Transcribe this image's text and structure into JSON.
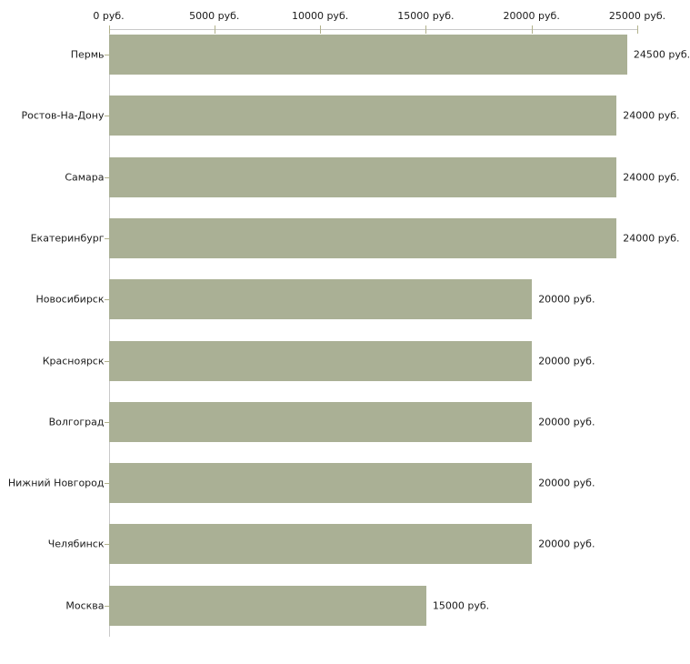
{
  "chart_data": {
    "type": "bar",
    "orientation": "horizontal",
    "title": "",
    "unit": "руб.",
    "categories": [
      "Пермь",
      "Ростов-На-Дону",
      "Самара",
      "Екатеринбург",
      "Новосибирск",
      "Красноярск",
      "Волгоград",
      "Нижний Новгород",
      "Челябинск",
      "Москва"
    ],
    "values": [
      24500,
      24000,
      24000,
      24000,
      20000,
      20000,
      20000,
      20000,
      20000,
      15000
    ],
    "value_labels": [
      "24500 руб.",
      "24000 руб.",
      "24000 руб.",
      "24000 руб.",
      "20000 руб.",
      "20000 руб.",
      "20000 руб.",
      "20000 руб.",
      "20000 руб.",
      "15000 руб."
    ],
    "x_axis": {
      "position": "top",
      "min": 0,
      "max": 25000,
      "ticks": [
        0,
        5000,
        10000,
        15000,
        20000,
        25000
      ],
      "tick_labels": [
        "0 руб.",
        "5000 руб.",
        "10000 руб.",
        "15000 руб.",
        "20000 руб.",
        "25000 руб."
      ]
    },
    "grid": false,
    "legend": null,
    "colors": {
      "bar": "#aab095",
      "axis": "#c9c9c9",
      "tick": "#b2b28c",
      "text": "#1a1a1a",
      "background": "#ffffff"
    }
  }
}
